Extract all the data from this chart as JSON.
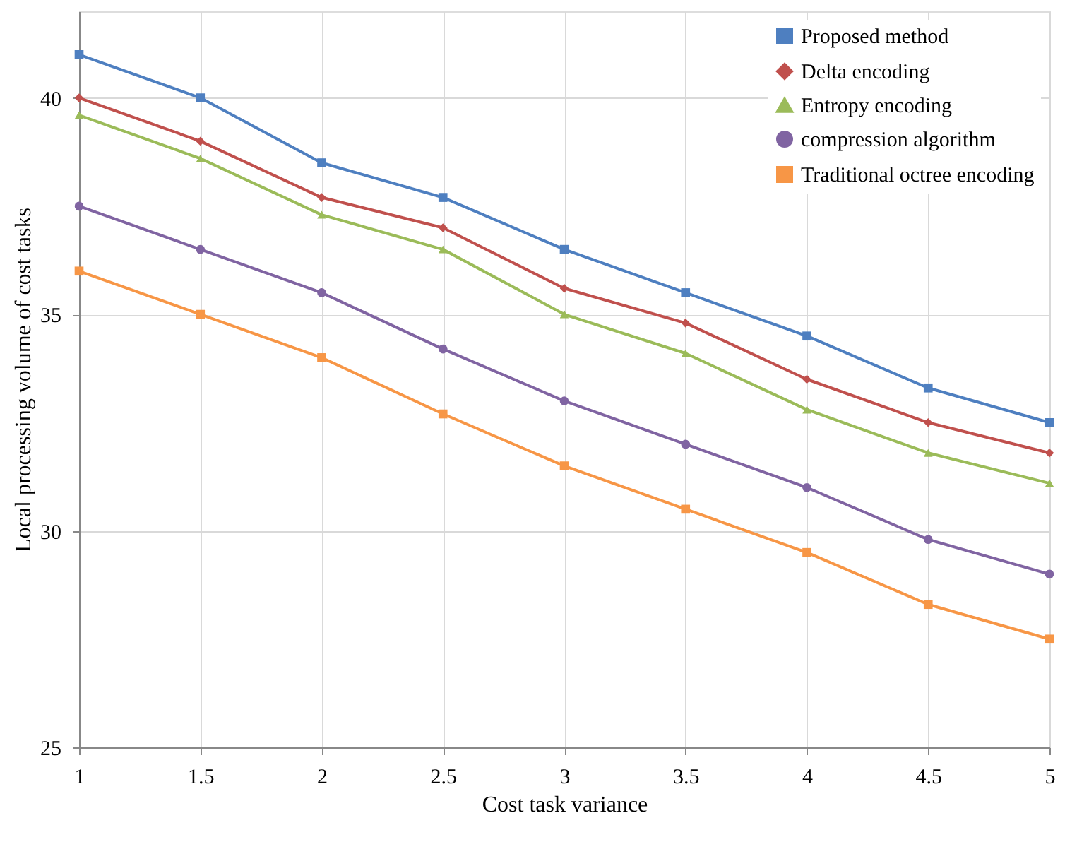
{
  "chart_data": {
    "type": "line",
    "xlabel": "Cost task variance",
    "ylabel": "Local processing volume of cost tasks",
    "x": [
      1,
      1.5,
      2,
      2.5,
      3,
      3.5,
      4,
      4.5,
      5
    ],
    "xlim": [
      1,
      5
    ],
    "xticks": [
      1,
      1.5,
      2,
      2.5,
      3,
      3.5,
      4,
      4.5,
      5
    ],
    "ylim": [
      25,
      42
    ],
    "yticks": [
      25,
      30,
      35,
      40
    ],
    "grid": true,
    "legend": "top right",
    "line_style": "solid",
    "series": [
      {
        "name": "Proposed method",
        "color": "#4e7fc0",
        "marker": "square",
        "values": [
          41.0,
          40.0,
          38.5,
          37.7,
          36.5,
          35.5,
          34.5,
          33.3,
          32.5
        ]
      },
      {
        "name": "Delta encoding",
        "color": "#c0504d",
        "marker": "diamond",
        "values": [
          40.0,
          39.0,
          37.7,
          37.0,
          35.6,
          34.8,
          33.5,
          32.5,
          31.8
        ]
      },
      {
        "name": "Entropy encoding",
        "color": "#9bbb59",
        "marker": "triangle",
        "values": [
          39.6,
          38.6,
          37.3,
          36.5,
          35.0,
          34.1,
          32.8,
          31.8,
          31.1
        ]
      },
      {
        "name": "compression algorithm",
        "color": "#8064a2",
        "marker": "circle",
        "values": [
          37.5,
          36.5,
          35.5,
          34.2,
          33.0,
          32.0,
          31.0,
          29.8,
          29.0
        ]
      },
      {
        "name": "Traditional octree encoding",
        "color": "#f79646",
        "marker": "square",
        "values": [
          36.0,
          35.0,
          34.0,
          32.7,
          31.5,
          30.5,
          29.5,
          28.3,
          27.5
        ]
      }
    ]
  }
}
